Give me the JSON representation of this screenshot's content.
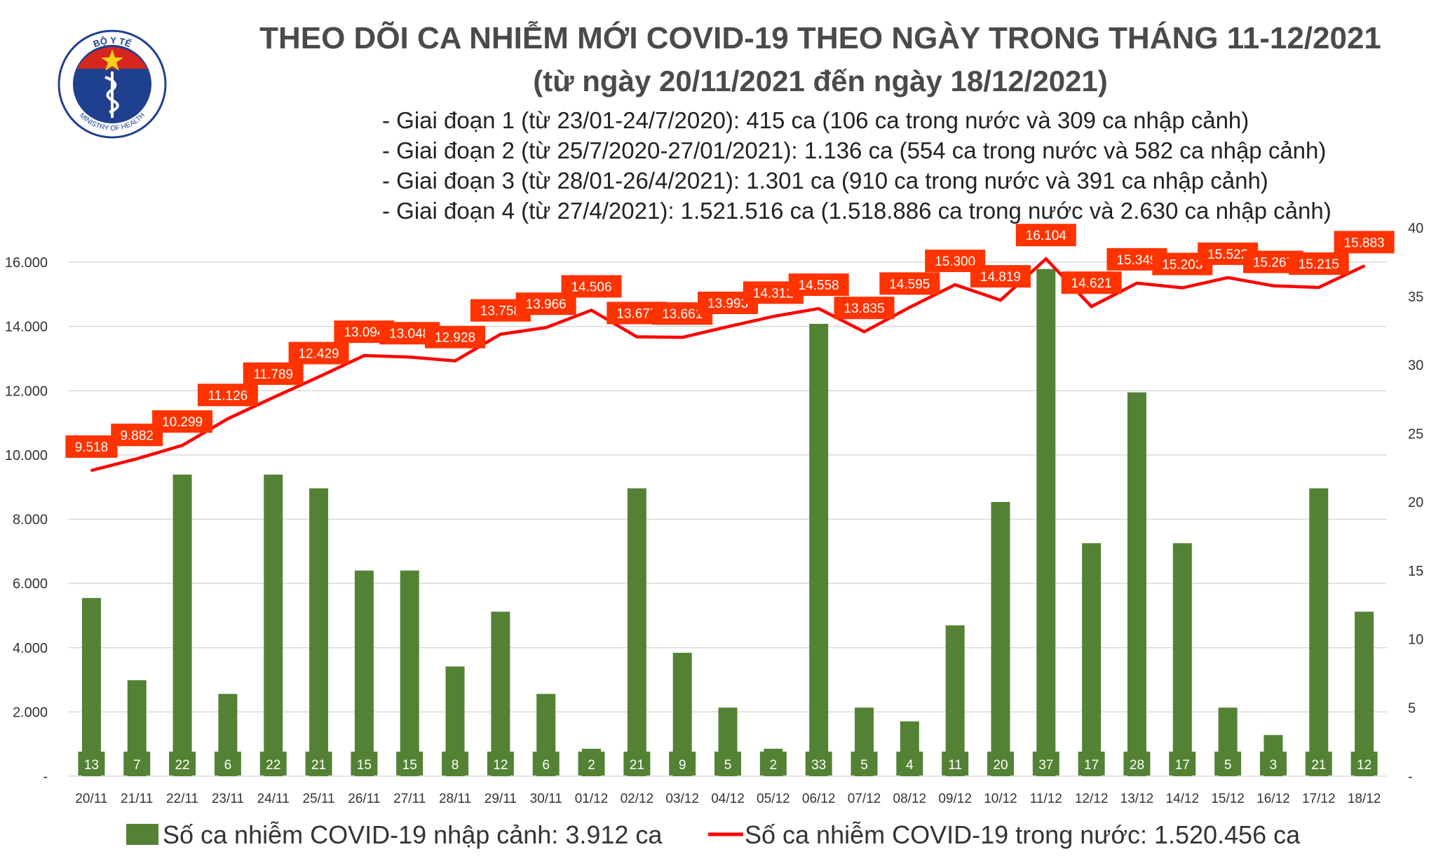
{
  "title": "THEO DÕI CA NHIỄM MỚI COVID-19 THEO NGÀY TRONG THÁNG 11-12/2021",
  "subtitle": "(từ ngày 20/11/2021 đến ngày 18/12/2021)",
  "stages": [
    "- Giai đoạn 1 (từ 23/01-24/7/2020): 415 ca (106 ca trong nước và 309 ca nhập cảnh)",
    "- Giai đoạn 2 (từ 25/7/2020-27/01/2021): 1.136 ca (554 ca trong nước và 582 ca nhập cảnh)",
    "- Giai đoạn 3 (từ 28/01-26/4/2021): 1.301 ca (910 ca trong nước và 391 ca nhập cảnh)",
    "- Giai đoạn 4 (từ 27/4/2021): 1.521.516 ca (1.518.886 ca trong nước và 2.630 ca nhập cảnh)"
  ],
  "logo": {
    "top_text": "BỘ Y TẾ",
    "bottom_text": "MINISTRY OF HEALTH",
    "icon": "caduceus-icon"
  },
  "colors": {
    "bar": "#548235",
    "line": "#ff0000",
    "label_bg": "#ff3300",
    "bar_label_bg": "#548235",
    "text": "#4a4a4a",
    "grid": "#d9d9d9",
    "logo_blue": "#1f3f8f",
    "logo_red": "#d7261e",
    "logo_star": "#f7d117"
  },
  "chart_data": {
    "type": "bar-line-combo",
    "categories": [
      "20/11",
      "21/11",
      "22/11",
      "23/11",
      "24/11",
      "25/11",
      "26/11",
      "27/11",
      "28/11",
      "29/11",
      "30/11",
      "01/12",
      "02/12",
      "03/12",
      "04/12",
      "05/12",
      "06/12",
      "07/12",
      "08/12",
      "09/12",
      "10/12",
      "11/12",
      "12/12",
      "13/12",
      "14/12",
      "15/12",
      "16/12",
      "17/12",
      "18/12"
    ],
    "series": [
      {
        "name": "Số ca nhiễm COVID-19 nhập cảnh: 3.912 ca",
        "type": "bar",
        "axis": "right",
        "values": [
          13,
          7,
          22,
          6,
          22,
          21,
          15,
          15,
          8,
          12,
          6,
          2,
          21,
          9,
          5,
          2,
          33,
          5,
          4,
          11,
          20,
          37,
          17,
          28,
          17,
          5,
          3,
          21,
          12
        ],
        "labels": [
          "13",
          "7",
          "22",
          "6",
          "22",
          "21",
          "15",
          "15",
          "8",
          "12",
          "6",
          "2",
          "21",
          "9",
          "5",
          "2",
          "33",
          "5",
          "4",
          "11",
          "20",
          "37",
          "17",
          "28",
          "17",
          "5",
          "3",
          "21",
          "12"
        ]
      },
      {
        "name": "Số ca nhiễm COVID-19 trong nước: 1.520.456 ca",
        "type": "line",
        "axis": "left",
        "values": [
          9518,
          9882,
          10299,
          11126,
          11789,
          12429,
          13094,
          13048,
          12928,
          13758,
          13966,
          14506,
          13677,
          13661,
          13993,
          14312,
          14558,
          13835,
          14595,
          15300,
          14819,
          16104,
          14621,
          15349,
          15203,
          15522,
          15267,
          15215,
          15883
        ],
        "labels": [
          "9.518",
          "9.882",
          "10.299",
          "11.126",
          "11.789",
          "12.429",
          "13.094",
          "13.048",
          "12.928",
          "13.758",
          "13.966",
          "14.506",
          "13.677",
          "13.661",
          "13.993",
          "14.312",
          "14.558",
          "13.835",
          "14.595",
          "15.300",
          "14.819",
          "16.104",
          "14.621",
          "15.349",
          "15.203",
          "15.522",
          "15.267",
          "15.215",
          "15.883"
        ]
      }
    ],
    "y_left": {
      "min": 0,
      "max": 16000,
      "step": 2000,
      "tick_labels": [
        "-",
        "2.000",
        "4.000",
        "6.000",
        "8.000",
        "10.000",
        "12.000",
        "14.000",
        "16.000"
      ]
    },
    "y_right": {
      "min": 0,
      "max": 40,
      "step": 5,
      "tick_labels": [
        "-",
        "5",
        "10",
        "15",
        "20",
        "25",
        "30",
        "35",
        "40"
      ]
    },
    "grid": true,
    "legend_position": "bottom"
  }
}
